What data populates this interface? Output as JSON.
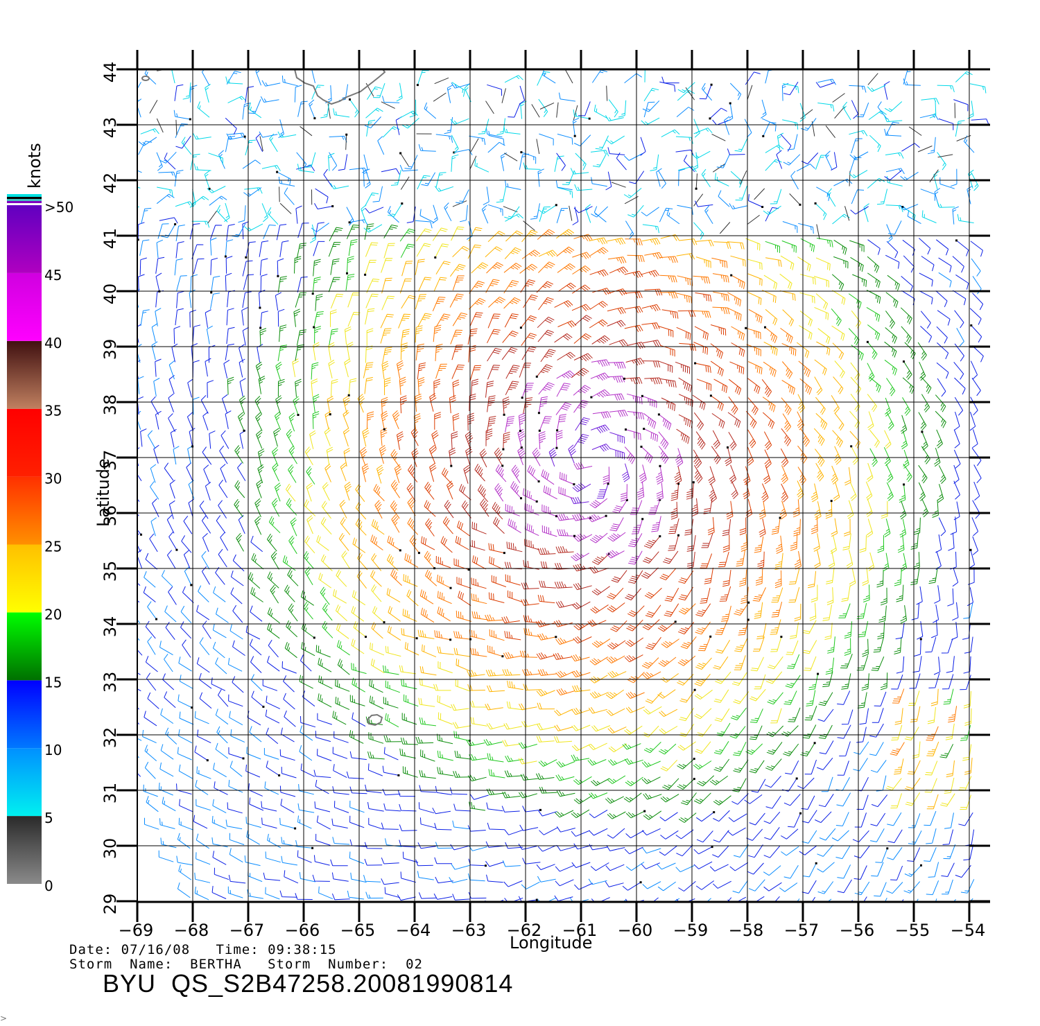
{
  "map": {
    "type": "wind-barb-map",
    "lon_range": [
      -69,
      -54
    ],
    "lat_range": [
      29,
      44
    ],
    "lon_ticks": [
      "−69",
      "−68",
      "−67",
      "−66",
      "−65",
      "−64",
      "−63",
      "−62",
      "−61",
      "−60",
      "−59",
      "−58",
      "−57",
      "−56",
      "−55",
      "−54"
    ],
    "lat_ticks": [
      "29",
      "30",
      "31",
      "32",
      "33",
      "34",
      "35",
      "36",
      "37",
      "38",
      "39",
      "40",
      "41",
      "42",
      "43",
      "44"
    ],
    "xlabel": "Longitude",
    "ylabel": "Latitude",
    "grid": true,
    "storm_center": {
      "lon": -60.8,
      "lat": 36.9
    },
    "colorbar": {
      "unit": "knots",
      "ticks": [
        "0",
        "5",
        "10",
        "15",
        "20",
        "25",
        "30",
        "35",
        "40",
        "45",
        ">50"
      ],
      "bands": [
        {
          "range": [
            0,
            5
          ],
          "color_bottom": "#8a8a8a",
          "color_top": "#2a2a2a"
        },
        {
          "range": [
            5,
            10
          ],
          "color_bottom": "#00f0f0",
          "color_top": "#0090ff"
        },
        {
          "range": [
            10,
            15
          ],
          "color_bottom": "#0078ff",
          "color_top": "#0000ff"
        },
        {
          "range": [
            15,
            20
          ],
          "color_bottom": "#007000",
          "color_top": "#00ff00"
        },
        {
          "range": [
            20,
            25
          ],
          "color_bottom": "#ffff00",
          "color_top": "#ffc000"
        },
        {
          "range": [
            25,
            30
          ],
          "color_bottom": "#ff9000",
          "color_top": "#ff3000"
        },
        {
          "range": [
            30,
            35
          ],
          "color_bottom": "#ff2000",
          "color_top": "#ff0000"
        },
        {
          "range": [
            35,
            40
          ],
          "color_bottom": "#c08060",
          "color_top": "#401010"
        },
        {
          "range": [
            40,
            45
          ],
          "color_bottom": "#ff00ff",
          "color_top": "#d000e0"
        },
        {
          "range": [
            45,
            50
          ],
          "color_bottom": "#b000c0",
          "color_top": "#6000c0"
        }
      ]
    }
  },
  "meta": {
    "date_line": "Date: 07/16/08   Time: 09:38:15",
    "storm_line": "Storm  Name:  BERTHA   Storm  Number:  02",
    "file_label": "BYU  QS_S2B47258.20081990814"
  }
}
